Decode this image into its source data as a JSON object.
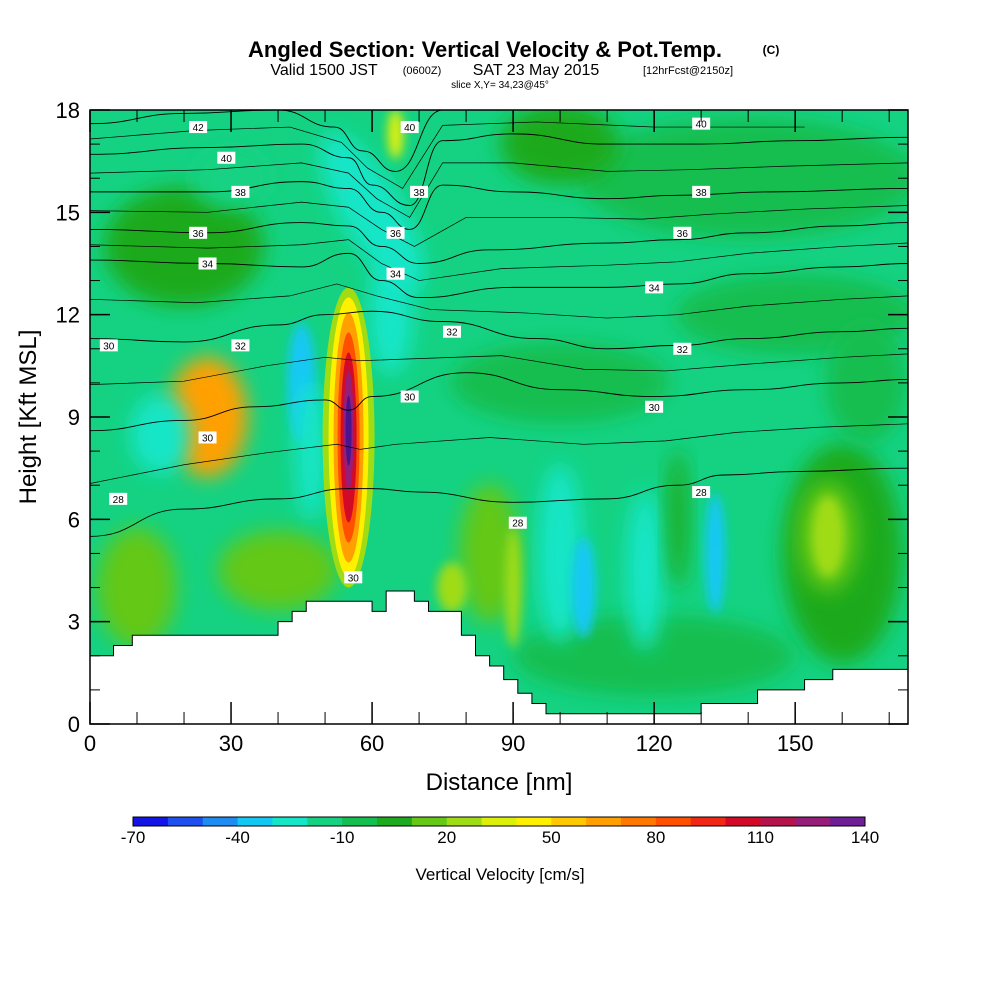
{
  "header": {
    "title_main": "Angled Section: Vertical Velocity & Pot.Temp.",
    "title_mark": "(C)",
    "valid_a": "Valid 1500 JST",
    "valid_b": "(0600Z)",
    "valid_c": "SAT 23 May 2015",
    "valid_d": "[12hrFcst@2150z]",
    "slice": "slice X,Y= 34,23@45°"
  },
  "chart_data": {
    "type": "heatmap",
    "xlabel": "Distance [nm]",
    "ylabel": "Height [Kft MSL]",
    "xlim": [
      0,
      174
    ],
    "ylim": [
      0,
      18
    ],
    "x_ticks": [
      0,
      30,
      60,
      90,
      120,
      150
    ],
    "y_ticks": [
      0,
      3,
      6,
      9,
      12,
      15,
      18
    ],
    "colorbar": {
      "label": "Vertical Velocity [cm/s]",
      "ticks": [
        -70,
        -40,
        -10,
        20,
        50,
        80,
        110,
        140
      ],
      "colors": [
        "#1414e6",
        "#1e50f0",
        "#1e8cf0",
        "#14c8f5",
        "#14e6c8",
        "#14d282",
        "#14be50",
        "#1eaa1e",
        "#64c814",
        "#a0dc14",
        "#dcf00a",
        "#fff000",
        "#ffc800",
        "#ffa000",
        "#ff7800",
        "#ff5000",
        "#f02814",
        "#d20a28",
        "#b4144b",
        "#961e78",
        "#6e1e96"
      ]
    },
    "terrain_profile": [
      [
        0,
        2.0
      ],
      [
        5,
        2.0
      ],
      [
        5,
        2.3
      ],
      [
        9,
        2.3
      ],
      [
        9,
        2.6
      ],
      [
        40,
        2.6
      ],
      [
        40,
        3.0
      ],
      [
        43,
        3.0
      ],
      [
        43,
        3.3
      ],
      [
        46,
        3.3
      ],
      [
        46,
        3.6
      ],
      [
        60,
        3.6
      ],
      [
        60,
        3.3
      ],
      [
        63,
        3.3
      ],
      [
        63,
        3.9
      ],
      [
        69,
        3.9
      ],
      [
        69,
        3.6
      ],
      [
        72,
        3.6
      ],
      [
        72,
        3.3
      ],
      [
        79,
        3.3
      ],
      [
        79,
        2.6
      ],
      [
        82,
        2.6
      ],
      [
        82,
        2.0
      ],
      [
        85,
        2.0
      ],
      [
        85,
        1.7
      ],
      [
        88,
        1.7
      ],
      [
        88,
        1.3
      ],
      [
        91,
        1.3
      ],
      [
        91,
        0.9
      ],
      [
        94,
        0.9
      ],
      [
        94,
        0.6
      ],
      [
        97,
        0.6
      ],
      [
        97,
        0.3
      ],
      [
        100,
        0.3
      ],
      [
        100,
        0.3
      ],
      [
        130,
        0.3
      ],
      [
        130,
        0.6
      ],
      [
        142,
        0.6
      ],
      [
        142,
        1.0
      ],
      [
        152,
        1.0
      ],
      [
        152,
        1.3
      ],
      [
        158,
        1.3
      ],
      [
        158,
        1.6
      ],
      [
        174,
        1.6
      ]
    ],
    "theta_contours": [
      {
        "label": "28",
        "x": [
          0,
          20,
          40,
          55,
          60,
          70,
          90,
          110,
          125,
          135,
          150,
          174
        ],
        "y": [
          5.5,
          6.3,
          6.6,
          6.9,
          6.9,
          6.8,
          6.5,
          6.6,
          7.0,
          7.3,
          7.4,
          7.5
        ]
      },
      {
        "label": "30",
        "x": [
          0,
          20,
          35,
          50,
          55,
          60,
          80,
          100,
          120,
          140,
          160,
          174
        ],
        "y": [
          8.6,
          8.9,
          9.3,
          9.5,
          9.2,
          9.6,
          10.3,
          9.8,
          9.6,
          9.8,
          10.0,
          10.1
        ]
      },
      {
        "label": "32",
        "x": [
          0,
          20,
          40,
          50,
          60,
          75,
          95,
          110,
          125,
          140,
          160,
          174
        ],
        "y": [
          11.3,
          11.2,
          11.7,
          12.0,
          12.1,
          11.8,
          11.3,
          11.0,
          11.1,
          11.3,
          11.5,
          11.6
        ]
      },
      {
        "label": "34",
        "x": [
          0,
          25,
          45,
          55,
          62,
          70,
          90,
          110,
          125,
          140,
          160,
          174
        ],
        "y": [
          13.6,
          13.5,
          13.4,
          13.8,
          13.0,
          12.5,
          12.8,
          12.8,
          12.9,
          13.2,
          13.4,
          13.5
        ]
      },
      {
        "label": "36",
        "x": [
          0,
          25,
          45,
          55,
          62,
          70,
          85,
          110,
          125,
          140,
          160,
          174
        ],
        "y": [
          14.5,
          14.4,
          14.7,
          14.6,
          14.0,
          13.5,
          13.9,
          14.1,
          14.2,
          14.4,
          14.6,
          14.7
        ]
      },
      {
        "label": "38",
        "x": [
          0,
          25,
          45,
          55,
          62,
          68,
          75,
          90,
          110,
          125,
          145,
          174
        ],
        "y": [
          15.6,
          15.6,
          15.9,
          15.7,
          15.0,
          14.5,
          15.8,
          15.6,
          15.4,
          15.5,
          15.6,
          15.7
        ]
      },
      {
        "label": "40",
        "x": [
          0,
          25,
          45,
          55,
          60,
          68,
          75,
          90,
          110,
          130,
          150,
          174
        ],
        "y": [
          16.7,
          16.9,
          17.0,
          16.6,
          15.8,
          15.2,
          17.1,
          17.3,
          17.0,
          17.0,
          17.1,
          17.2
        ]
      },
      {
        "label": "42",
        "x": [
          0,
          20,
          40,
          52,
          58,
          65,
          75,
          100,
          130,
          174
        ],
        "y": [
          17.6,
          17.9,
          18.0,
          17.5,
          16.8,
          16.2,
          18.0,
          18.0,
          18.0,
          18.0
        ]
      }
    ],
    "contour_labels": [
      {
        "text": "42",
        "x": 23,
        "y": 17.5
      },
      {
        "text": "40",
        "x": 29,
        "y": 16.6
      },
      {
        "text": "38",
        "x": 32,
        "y": 15.6
      },
      {
        "text": "36",
        "x": 23,
        "y": 14.4
      },
      {
        "text": "34",
        "x": 25,
        "y": 13.5
      },
      {
        "text": "30",
        "x": 4,
        "y": 11.1
      },
      {
        "text": "32",
        "x": 32,
        "y": 11.1
      },
      {
        "text": "30",
        "x": 25,
        "y": 8.4
      },
      {
        "text": "28",
        "x": 6,
        "y": 6.6
      },
      {
        "text": "40",
        "x": 68,
        "y": 17.5
      },
      {
        "text": "38",
        "x": 70,
        "y": 15.6
      },
      {
        "text": "36",
        "x": 65,
        "y": 14.4
      },
      {
        "text": "34",
        "x": 65,
        "y": 13.2
      },
      {
        "text": "32",
        "x": 77,
        "y": 11.5
      },
      {
        "text": "30",
        "x": 68,
        "y": 9.6
      },
      {
        "text": "28",
        "x": 91,
        "y": 5.9
      },
      {
        "text": "30",
        "x": 56,
        "y": 4.3
      },
      {
        "text": "40",
        "x": 130,
        "y": 17.6
      },
      {
        "text": "38",
        "x": 130,
        "y": 15.6
      },
      {
        "text": "36",
        "x": 126,
        "y": 14.4
      },
      {
        "text": "34",
        "x": 120,
        "y": 12.8
      },
      {
        "text": "32",
        "x": 126,
        "y": 11.0
      },
      {
        "text": "30",
        "x": 120,
        "y": 9.3
      },
      {
        "text": "28",
        "x": 130,
        "y": 6.8
      }
    ]
  }
}
